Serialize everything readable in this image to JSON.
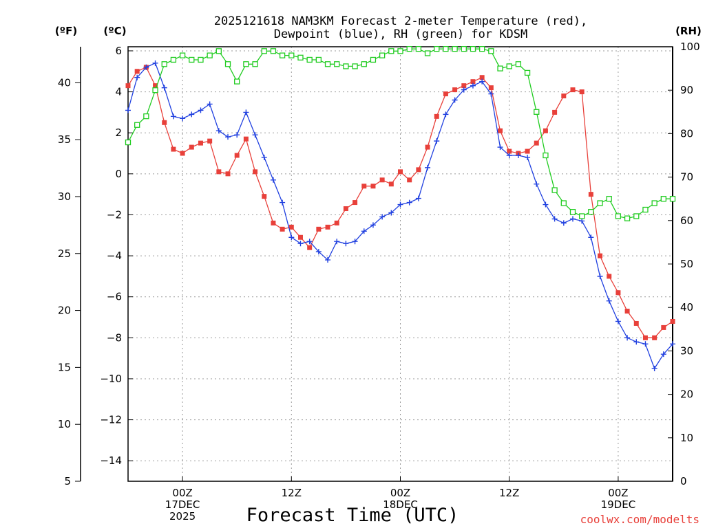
{
  "title_line1": "2025121618 NAM3KM Forecast 2-meter Temperature (red),",
  "title_line2": "Dewpoint (blue), RH (green) for KDSM",
  "axis_units": {
    "fahrenheit": "(ºF)",
    "celsius": "(ºC)",
    "rh": "(RH)"
  },
  "x_axis_label": "Forecast Time (UTC)",
  "credit": "coolwx.com/modelts",
  "colors": {
    "temperature": "#e8403a",
    "dewpoint": "#2040e0",
    "rh": "#20cc20",
    "credit": "#e8403a"
  },
  "chart_data": {
    "type": "line",
    "title": "2025121618 NAM3KM Forecast 2-meter Temperature (red), Dewpoint (blue), RH (green) for KDSM",
    "xlabel": "Forecast Time (UTC)",
    "ylabel_left_outer": "(ºF)",
    "ylabel_left": "(ºC)",
    "ylabel_right": "(RH)",
    "x_unit": "forecast hour from 2025-12-16 18Z",
    "xlim": [
      0,
      60
    ],
    "x_ticks": [
      {
        "x": 6,
        "lines": [
          "00Z",
          "17DEC",
          "2025"
        ]
      },
      {
        "x": 18,
        "lines": [
          "12Z"
        ]
      },
      {
        "x": 30,
        "lines": [
          "00Z",
          "18DEC"
        ]
      },
      {
        "x": 42,
        "lines": [
          "12Z"
        ]
      },
      {
        "x": 54,
        "lines": [
          "00Z",
          "19DEC"
        ]
      }
    ],
    "ylim_celsius": [
      -15,
      6.2
    ],
    "yticks_celsius": [
      {
        "v": 6,
        "label": "6"
      },
      {
        "v": 4,
        "label": "4"
      },
      {
        "v": 2,
        "label": "2"
      },
      {
        "v": 0,
        "label": "0"
      },
      {
        "v": -2,
        "label": "−2"
      },
      {
        "v": -4,
        "label": "−4"
      },
      {
        "v": -6,
        "label": "−6"
      },
      {
        "v": -8,
        "label": "−8"
      },
      {
        "v": -10,
        "label": "−10"
      },
      {
        "v": -12,
        "label": "−12"
      },
      {
        "v": -14,
        "label": "−14"
      }
    ],
    "yticks_fahrenheit": [
      {
        "v": 40,
        "label": "40"
      },
      {
        "v": 35,
        "label": "35"
      },
      {
        "v": 30,
        "label": "30"
      },
      {
        "v": 25,
        "label": "25"
      },
      {
        "v": 20,
        "label": "20"
      },
      {
        "v": 15,
        "label": "15"
      },
      {
        "v": 10,
        "label": "10"
      },
      {
        "v": 5,
        "label": "5"
      }
    ],
    "ylim_rh": [
      0,
      100
    ],
    "yticks_rh": [
      {
        "v": 100,
        "label": "100"
      },
      {
        "v": 90,
        "label": "90"
      },
      {
        "v": 80,
        "label": "80"
      },
      {
        "v": 70,
        "label": "70"
      },
      {
        "v": 60,
        "label": "60"
      },
      {
        "v": 50,
        "label": "50"
      },
      {
        "v": 40,
        "label": "40"
      },
      {
        "v": 30,
        "label": "30"
      },
      {
        "v": 20,
        "label": "20"
      },
      {
        "v": 10,
        "label": "10"
      },
      {
        "v": 0,
        "label": "0"
      }
    ],
    "x": [
      0,
      1,
      2,
      3,
      4,
      5,
      6,
      7,
      8,
      9,
      10,
      11,
      12,
      13,
      14,
      15,
      16,
      17,
      18,
      19,
      20,
      21,
      22,
      23,
      24,
      25,
      26,
      27,
      28,
      29,
      30,
      31,
      32,
      33,
      34,
      35,
      36,
      37,
      38,
      39,
      40,
      41,
      42,
      43,
      44,
      45,
      46,
      47,
      48,
      49,
      50,
      51,
      52,
      53,
      54,
      55,
      56,
      57,
      58,
      59,
      60
    ],
    "series": [
      {
        "name": "Temperature",
        "unit": "°C",
        "color": "#e8403a",
        "marker": "filled-square",
        "values": [
          4.3,
          5.0,
          5.2,
          4.3,
          2.5,
          1.2,
          1.0,
          1.3,
          1.5,
          1.6,
          0.1,
          0.0,
          0.9,
          1.7,
          0.1,
          -1.1,
          -2.4,
          -2.7,
          -2.6,
          -3.1,
          -3.6,
          -2.7,
          -2.6,
          -2.4,
          -1.7,
          -1.4,
          -0.6,
          -0.6,
          -0.3,
          -0.5,
          0.1,
          -0.3,
          0.2,
          1.3,
          2.8,
          3.9,
          4.1,
          4.3,
          4.5,
          4.7,
          4.2,
          2.1,
          1.1,
          1.0,
          1.1,
          1.5,
          2.1,
          3.0,
          3.8,
          4.1,
          4.0,
          -1.0,
          -4.0,
          -5.0,
          -5.8,
          -6.7,
          -7.3,
          -8.0,
          -8.0,
          -7.5,
          -7.2
        ]
      },
      {
        "name": "Dewpoint",
        "unit": "°C",
        "color": "#2040e0",
        "marker": "plus",
        "values": [
          3.1,
          4.7,
          5.2,
          5.4,
          4.2,
          2.8,
          2.7,
          2.9,
          3.1,
          3.4,
          2.1,
          1.8,
          1.9,
          3.0,
          1.9,
          0.8,
          -0.3,
          -1.4,
          -3.1,
          -3.4,
          -3.3,
          -3.8,
          -4.2,
          -3.3,
          -3.4,
          -3.3,
          -2.8,
          -2.5,
          -2.1,
          -1.9,
          -1.5,
          -1.4,
          -1.2,
          0.3,
          1.6,
          2.9,
          3.6,
          4.1,
          4.3,
          4.5,
          3.9,
          1.3,
          0.9,
          0.9,
          0.8,
          -0.5,
          -1.5,
          -2.2,
          -2.4,
          -2.2,
          -2.3,
          -3.1,
          -5.0,
          -6.2,
          -7.2,
          -8.0,
          -8.2,
          -8.3,
          -9.5,
          -8.8,
          -8.3
        ]
      },
      {
        "name": "RH",
        "unit": "%",
        "color": "#20cc20",
        "marker": "open-square",
        "values": [
          78,
          82,
          84,
          90,
          96,
          97,
          98,
          97,
          97,
          98,
          99,
          96,
          92,
          96,
          96,
          99,
          99,
          98,
          98,
          97.5,
          97,
          97,
          96,
          96,
          95.5,
          95.5,
          96,
          97,
          98,
          99,
          99,
          99.5,
          99.5,
          98.5,
          99.5,
          99.5,
          99.5,
          99.5,
          99.5,
          99.5,
          99,
          95,
          95.5,
          96,
          94,
          85,
          75,
          67,
          64,
          62,
          61,
          62,
          64,
          65,
          61,
          60.5,
          61,
          62.5,
          64,
          65,
          65
        ]
      }
    ]
  }
}
